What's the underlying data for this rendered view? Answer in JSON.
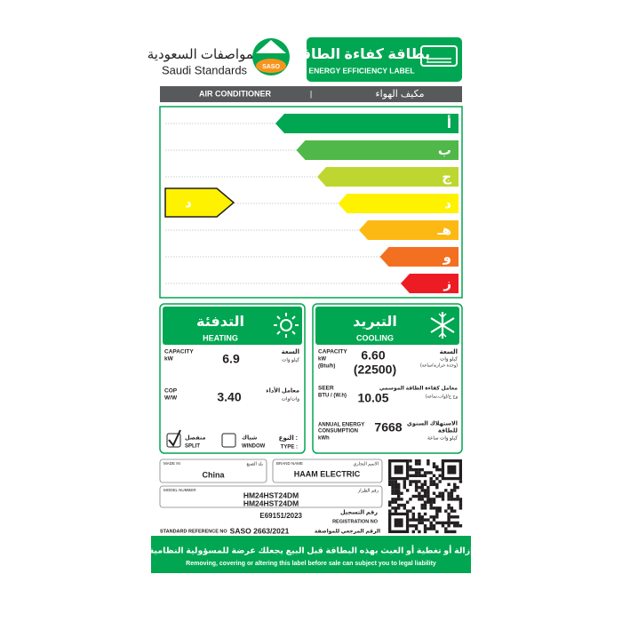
{
  "header": {
    "org_ar": "المواصفات السعودية",
    "org_en": "Saudi Standards",
    "logo": "SASO",
    "title_ar": "بطاقة كفاءة الطاقة",
    "title_en": "ENERGY EFFICIENCY LABEL"
  },
  "product": {
    "en": "AIR CONDITIONER",
    "separator": "|",
    "ar": "مكيف الهواء"
  },
  "rating": {
    "grades": [
      "أ",
      "ب",
      "ج",
      "د",
      "هـ",
      "و",
      "ز"
    ],
    "current": "د"
  },
  "heating": {
    "title_ar": "التدفئة",
    "title_en": "HEATING",
    "capacity_label": "CAPACITY",
    "capacity_unit": "kW",
    "capacity_label_ar": "السعة",
    "capacity_unit_ar": "كيلو وات",
    "capacity": "6.9",
    "cop_label": "COP",
    "cop_unit": "W/W",
    "cop_label_ar": "معامل الأداء",
    "cop_unit_ar": "وات/وات",
    "cop": "3.40",
    "type_ar": "النوع :",
    "type_en": "TYPE :",
    "split_ar": "منفصل",
    "split_en": "SPLIT",
    "window_ar": "شباك",
    "window_en": "WINDOW",
    "split_checked": true
  },
  "cooling": {
    "title_ar": "التبريد",
    "title_en": "COOLING",
    "capacity_label": "CAPACITY",
    "capacity_unit": "kW",
    "capacity_unit2": "(Btu/h)",
    "capacity_label_ar": "السعة",
    "capacity_unit_ar": "كيلو وات",
    "capacity_unit2_ar": "(وحدة حرارية/ساعة)",
    "capacity_kw": "6.60",
    "capacity_btu": "(22500)",
    "seer_label": "SEER",
    "seer_unit": "BTU / (W.h)",
    "seer_label_ar": "معامل كفاءة الطاقة الموسمي",
    "seer_unit_ar": "وح ح/(وات.ساعة)",
    "seer": "10.05",
    "annual_label_1": "ANNUAL ENERGY",
    "annual_label_2": "CONSUMPTION",
    "annual_unit": "kWh",
    "annual_label_ar_1": "الاستهلاك السنوي",
    "annual_label_ar_2": "للطاقة",
    "annual_unit_ar": "كيلو وات ساعة",
    "annual": "7668"
  },
  "info": {
    "made_in_label": "MADE IN",
    "made_in_label_ar": "بلد الصنع",
    "made_in": "China",
    "brand_label": "BRAND NAME",
    "brand_label_ar": "الاسم التجاري",
    "brand": "HAAM ELECTRIC",
    "model_label": "MODEL NUMBER",
    "model_label_ar": "رقم الطراز",
    "models": [
      "HM24HST24DM",
      "HM24HST24DM"
    ],
    "registration": "E69151/2023",
    "registration_label_ar": "رقم التسجيل",
    "registration_label": "REGISTRATION NO",
    "standard_label": "STANDARD REFERENCE NO",
    "standard": "SASO 2663/2021",
    "standard_label_ar": "الرقم المرجعي للمواصفة"
  },
  "footer": {
    "warning_ar": "إزالة أو تغطية أو العبث بهذه البطاقة قبل البيع يجعلك عرضة للمسؤولية النظامية",
    "warning_en": "Removing, covering or altering this label before sale can subject you to legal liability"
  }
}
